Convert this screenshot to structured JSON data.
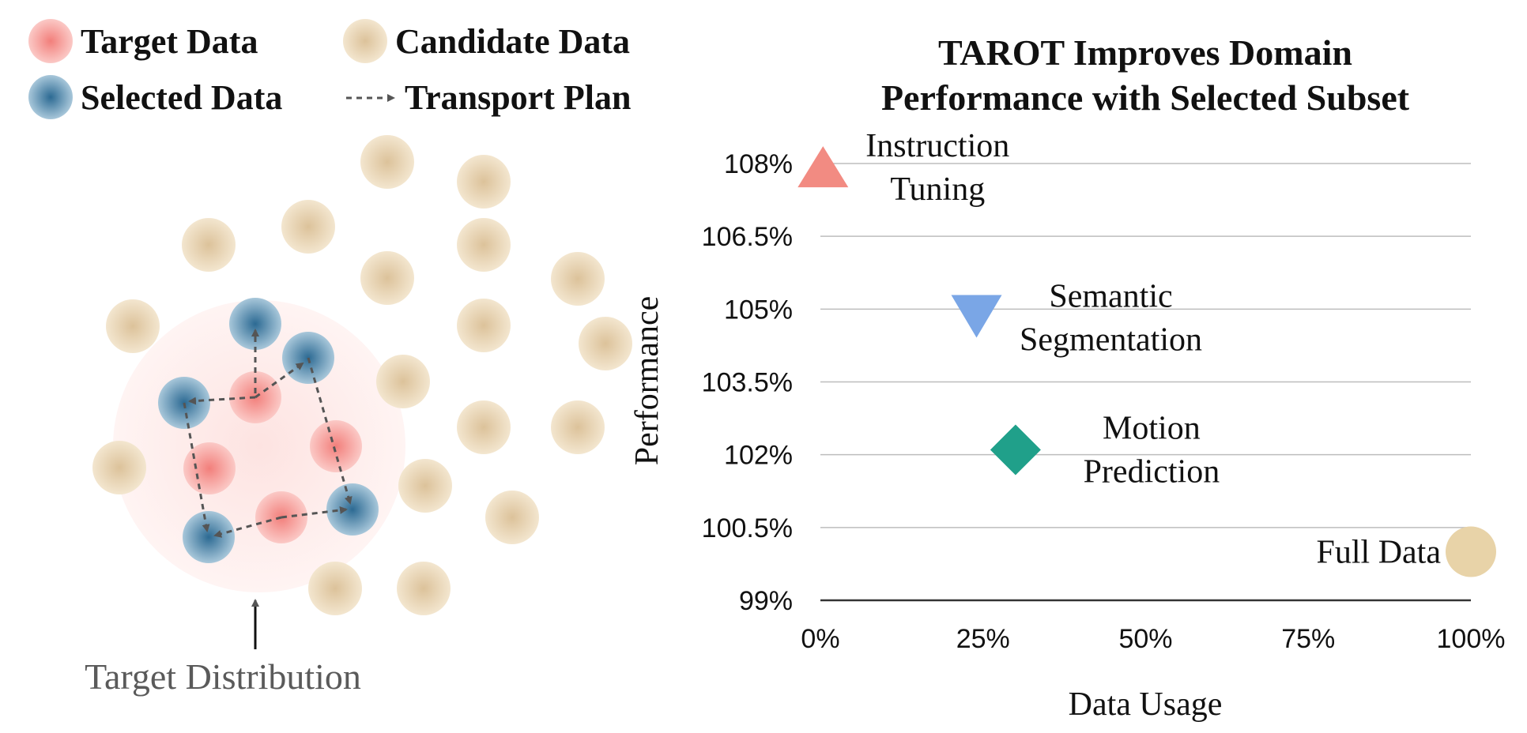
{
  "legend": {
    "target": "Target Data",
    "candidate": "Candidate Data",
    "selected": "Selected Data",
    "transport": "Transport Plan"
  },
  "diagram": {
    "distribution_label": "Target Distribution"
  },
  "colors": {
    "target": "#f4a3a0",
    "candidate": "#e8d3b0",
    "selected": "#4d88ad",
    "distribution": "#fdeeed",
    "arrow": "#555555",
    "instruction_tuning": "#f28b82",
    "semantic_segmentation": "#7aa6e6",
    "motion_prediction": "#20a08a",
    "full_data": "#e8d3a8",
    "grid": "#bdbdbd"
  },
  "chart_data": {
    "type": "scatter",
    "title_lines": [
      "TAROT Improves Domain",
      "Performance with Selected Subset"
    ],
    "xlabel": "Data Usage",
    "ylabel": "Performance",
    "xlim": [
      0,
      100
    ],
    "ylim": [
      99,
      108
    ],
    "xticks": [
      "0%",
      "25%",
      "50%",
      "75%",
      "100%"
    ],
    "yticks": [
      "99%",
      "100.5%",
      "102%",
      "103.5%",
      "105%",
      "106.5%",
      "108%"
    ],
    "grid": true,
    "points": [
      {
        "name": "Instruction Tuning",
        "label_lines": [
          "Instruction",
          "Tuning"
        ],
        "x": 0.4,
        "y": 107.9,
        "marker": "triangle-up"
      },
      {
        "name": "Semantic Segmentation",
        "label_lines": [
          "Semantic",
          "Segmentation"
        ],
        "x": 24,
        "y": 104.9,
        "marker": "triangle-down"
      },
      {
        "name": "Motion Prediction",
        "label_lines": [
          "Motion",
          "Prediction"
        ],
        "x": 30,
        "y": 102.1,
        "marker": "diamond"
      },
      {
        "name": "Full Data",
        "label_lines": [
          "Full Data"
        ],
        "x": 100,
        "y": 100,
        "marker": "circle"
      }
    ]
  }
}
